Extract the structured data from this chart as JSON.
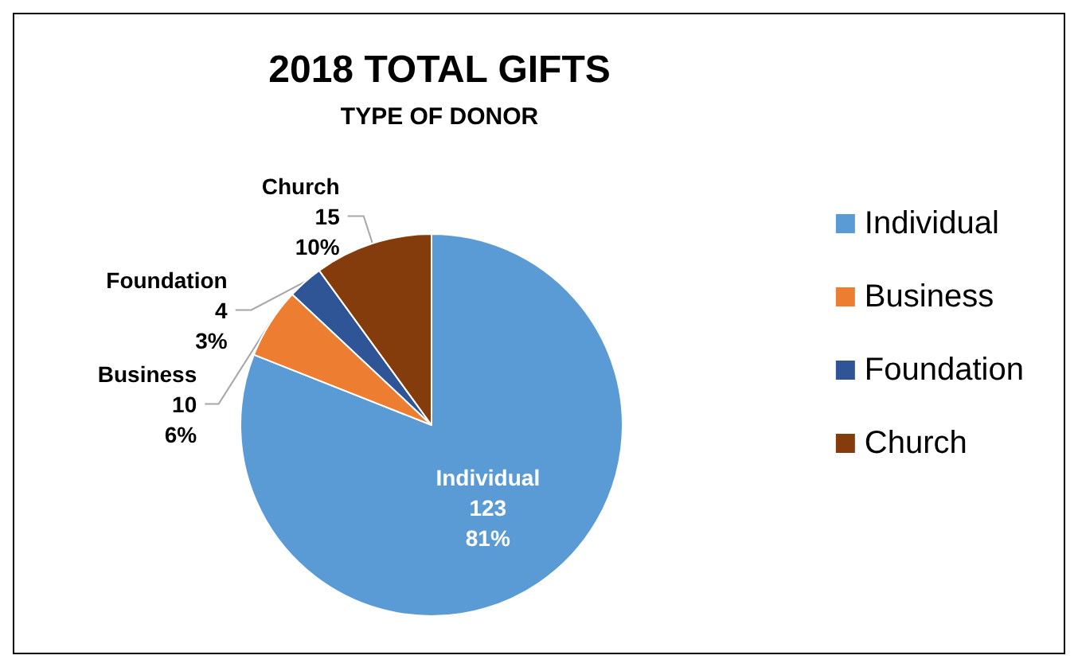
{
  "chart_data": {
    "type": "pie",
    "title": "2018 TOTAL GIFTS",
    "subtitle": "TYPE OF DONOR",
    "categories": [
      "Individual",
      "Business",
      "Foundation",
      "Church"
    ],
    "values": [
      81,
      6,
      3,
      10
    ],
    "colors": [
      "#5b9bd5",
      "#ed7d31",
      "#2f5597",
      "#843c0c"
    ],
    "value_labels": [
      "123\n81%",
      "10\n6%",
      "4\n3%",
      "15\n10%"
    ],
    "legend": "right"
  }
}
